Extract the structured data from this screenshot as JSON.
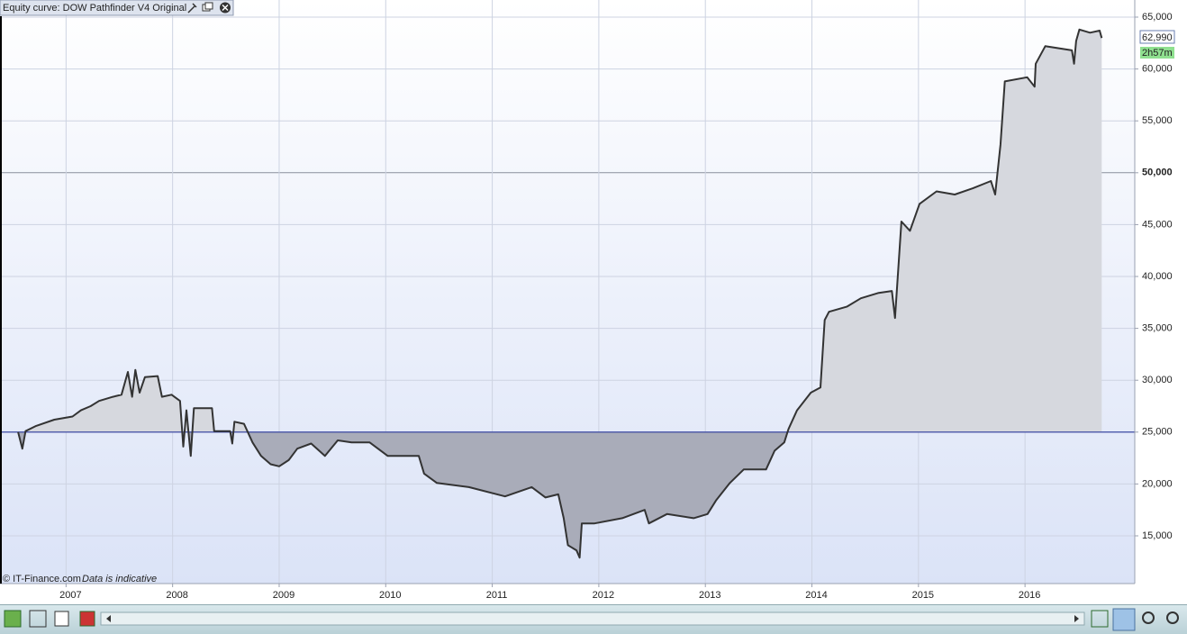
{
  "chart_data": {
    "type": "line",
    "title": "Equity curve: DOW Pathfinder V4 Original",
    "source": "© IT-Finance.com",
    "note": "Data is indicative",
    "timer": "2h57m",
    "current_value": {
      "value": 62990,
      "label": "62,990"
    },
    "color": "#333333",
    "baseline": 25000,
    "baseline_color": "#2b3a9c",
    "fill_above_color": "#d6d8de",
    "fill_below_color": "#a9acb9",
    "emphasized_ytick": 50000,
    "grid": true,
    "x": [
      2006.55,
      2006.59,
      2006.62,
      2006.72,
      2006.89,
      2007.06,
      2007.14,
      2007.23,
      2007.31,
      2007.44,
      2007.52,
      2007.58,
      2007.62,
      2007.65,
      2007.69,
      2007.74,
      2007.86,
      2007.9,
      2007.99,
      2008.07,
      2008.1,
      2008.13,
      2008.17,
      2008.2,
      2008.37,
      2008.39,
      2008.54,
      2008.56,
      2008.58,
      2008.67,
      2008.75,
      2008.83,
      2008.92,
      2009.0,
      2009.09,
      2009.17,
      2009.3,
      2009.43,
      2009.55,
      2009.68,
      2009.85,
      2010.02,
      2010.31,
      2010.36,
      2010.48,
      2010.78,
      2011.12,
      2011.37,
      2011.5,
      2011.62,
      2011.67,
      2011.71,
      2011.79,
      2011.82,
      2011.84,
      2011.96,
      2012.22,
      2012.43,
      2012.47,
      2012.64,
      2012.89,
      2013.02,
      2013.1,
      2013.23,
      2013.36,
      2013.57,
      2013.65,
      2013.74,
      2013.78,
      2013.86,
      2013.99,
      2014.08,
      2014.12,
      2014.16,
      2014.33,
      2014.46,
      2014.62,
      2014.75,
      2014.78,
      2014.84,
      2014.92,
      2015.01,
      2015.17,
      2015.34,
      2015.51,
      2015.68,
      2015.72,
      2015.77,
      2015.81,
      2016.02,
      2016.09,
      2016.1,
      2016.19,
      2016.44,
      2016.46,
      2016.48,
      2016.51,
      2016.61,
      2016.7,
      2016.72
    ],
    "values": [
      25000,
      23400,
      25100,
      25600,
      26200,
      26500,
      27100,
      27500,
      28000,
      28400,
      28600,
      30800,
      28400,
      31000,
      28800,
      30300,
      30400,
      28400,
      28600,
      28000,
      23600,
      27100,
      22700,
      27300,
      27300,
      25100,
      25100,
      23900,
      26000,
      25800,
      24000,
      22700,
      21900,
      21700,
      22300,
      23400,
      23900,
      22700,
      24200,
      24000,
      24000,
      22700,
      22700,
      21000,
      20100,
      19700,
      18800,
      19700,
      18700,
      19000,
      16700,
      14100,
      13600,
      12900,
      16200,
      16200,
      16700,
      17500,
      16200,
      17100,
      16700,
      17100,
      18400,
      20100,
      21400,
      21400,
      23200,
      24000,
      25300,
      27100,
      28800,
      29300,
      35800,
      36600,
      37100,
      37900,
      38400,
      38600,
      36000,
      45300,
      44400,
      47000,
      48200,
      47900,
      48500,
      49200,
      47900,
      52700,
      58800,
      59200,
      58300,
      60500,
      62200,
      61800,
      60500,
      62700,
      63800,
      63500,
      63700,
      62990
    ],
    "xlim": [
      2006.38,
      2017.03
    ],
    "xticks": [
      2007,
      2008,
      2009,
      2010,
      2011,
      2012,
      2013,
      2014,
      2015,
      2016
    ],
    "ylim": [
      10400,
      66650
    ],
    "yticks": [
      {
        "value": 15000,
        "label": "15,000"
      },
      {
        "value": 20000,
        "label": "20,000"
      },
      {
        "value": 25000,
        "label": "25,000"
      },
      {
        "value": 30000,
        "label": "30,000"
      },
      {
        "value": 35000,
        "label": "35,000"
      },
      {
        "value": 40000,
        "label": "40,000"
      },
      {
        "value": 45000,
        "label": "45,000"
      },
      {
        "value": 50000,
        "label": "50,000"
      },
      {
        "value": 55000,
        "label": "55,000"
      },
      {
        "value": 60000,
        "label": "60,000"
      },
      {
        "value": 65000,
        "label": "65,000"
      }
    ]
  }
}
